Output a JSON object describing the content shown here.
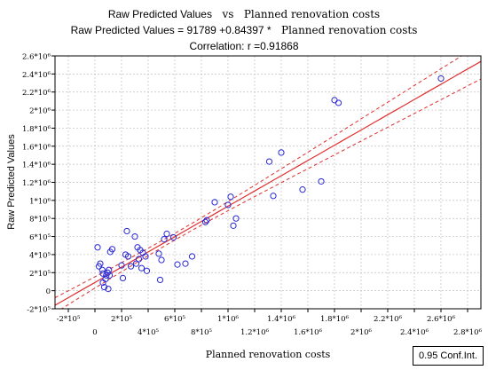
{
  "chart_data": {
    "type": "scatter",
    "title_parts": {
      "left": "Raw Predicted Values",
      "mid": "vs",
      "right": "Planned renovation costs"
    },
    "subtitle_parts": {
      "left": "Raw Predicted Values  =  91789  +0.84397 *",
      "right": "Planned renovation costs"
    },
    "correlation_label": "Correlation: r =0.91868",
    "xlabel": "Planned renovation costs",
    "ylabel": "Raw Predicted Values",
    "xlim": [
      -300000,
      2900000
    ],
    "ylim": [
      -200000,
      2600000
    ],
    "x_ticks_upper": [
      {
        "v": -200000,
        "label": "-2*10⁵"
      },
      {
        "v": 200000,
        "label": "2*10⁵"
      },
      {
        "v": 600000,
        "label": "6*10⁵"
      },
      {
        "v": 1000000,
        "label": "1*10⁶"
      },
      {
        "v": 1400000,
        "label": "1.4*10⁶"
      },
      {
        "v": 1800000,
        "label": "1.8*10⁶"
      },
      {
        "v": 2200000,
        "label": "2.2*10⁶"
      },
      {
        "v": 2600000,
        "label": "2.6*10⁶"
      }
    ],
    "x_ticks_lower": [
      {
        "v": 0,
        "label": "0"
      },
      {
        "v": 400000,
        "label": "4*10⁵"
      },
      {
        "v": 800000,
        "label": "8*10⁵"
      },
      {
        "v": 1200000,
        "label": "1.2*10⁶"
      },
      {
        "v": 1600000,
        "label": "1.6*10⁶"
      },
      {
        "v": 2000000,
        "label": "2*10⁶"
      },
      {
        "v": 2400000,
        "label": "2.4*10⁶"
      },
      {
        "v": 2800000,
        "label": "2.8*10⁶"
      }
    ],
    "y_ticks": [
      {
        "v": -200000,
        "label": "-2*10⁵"
      },
      {
        "v": 0,
        "label": "0"
      },
      {
        "v": 200000,
        "label": "2*10⁵"
      },
      {
        "v": 400000,
        "label": "4*10⁵"
      },
      {
        "v": 600000,
        "label": "6*10⁵"
      },
      {
        "v": 800000,
        "label": "8*10⁵"
      },
      {
        "v": 1000000,
        "label": "1*10⁶"
      },
      {
        "v": 1200000,
        "label": "1.2*10⁶"
      },
      {
        "v": 1400000,
        "label": "1.4*10⁶"
      },
      {
        "v": 1600000,
        "label": "1.6*10⁶"
      },
      {
        "v": 1800000,
        "label": "1.8*10⁶"
      },
      {
        "v": 2000000,
        "label": "2*10⁶"
      },
      {
        "v": 2200000,
        "label": "2.2*10⁶"
      },
      {
        "v": 2400000,
        "label": "2.4*10⁶"
      },
      {
        "v": 2600000,
        "label": "2.6*10⁶"
      }
    ],
    "grid": true,
    "regression": {
      "intercept": 91789,
      "slope": 0.84397,
      "conf_band": 75000
    },
    "conf_label": "0.95 Conf.Int.",
    "points": [
      [
        20000,
        480000
      ],
      [
        30000,
        270000
      ],
      [
        40000,
        300000
      ],
      [
        55000,
        230000
      ],
      [
        60000,
        190000
      ],
      [
        60000,
        90000
      ],
      [
        70000,
        40000
      ],
      [
        80000,
        130000
      ],
      [
        85000,
        170000
      ],
      [
        95000,
        200000
      ],
      [
        100000,
        20000
      ],
      [
        105000,
        230000
      ],
      [
        110000,
        170000
      ],
      [
        115000,
        430000
      ],
      [
        130000,
        460000
      ],
      [
        200000,
        280000
      ],
      [
        210000,
        140000
      ],
      [
        230000,
        400000
      ],
      [
        240000,
        660000
      ],
      [
        250000,
        380000
      ],
      [
        270000,
        270000
      ],
      [
        300000,
        600000
      ],
      [
        310000,
        300000
      ],
      [
        320000,
        480000
      ],
      [
        330000,
        350000
      ],
      [
        340000,
        450000
      ],
      [
        350000,
        250000
      ],
      [
        360000,
        420000
      ],
      [
        380000,
        380000
      ],
      [
        390000,
        220000
      ],
      [
        480000,
        410000
      ],
      [
        490000,
        120000
      ],
      [
        500000,
        340000
      ],
      [
        520000,
        570000
      ],
      [
        540000,
        630000
      ],
      [
        590000,
        590000
      ],
      [
        620000,
        290000
      ],
      [
        680000,
        300000
      ],
      [
        730000,
        380000
      ],
      [
        830000,
        760000
      ],
      [
        840000,
        780000
      ],
      [
        900000,
        980000
      ],
      [
        1000000,
        950000
      ],
      [
        1020000,
        1040000
      ],
      [
        1040000,
        720000
      ],
      [
        1060000,
        800000
      ],
      [
        1310000,
        1430000
      ],
      [
        1340000,
        1050000
      ],
      [
        1400000,
        1530000
      ],
      [
        1560000,
        1120000
      ],
      [
        1700000,
        1210000
      ],
      [
        1800000,
        2110000
      ],
      [
        1830000,
        2080000
      ],
      [
        2600000,
        2350000
      ]
    ]
  }
}
